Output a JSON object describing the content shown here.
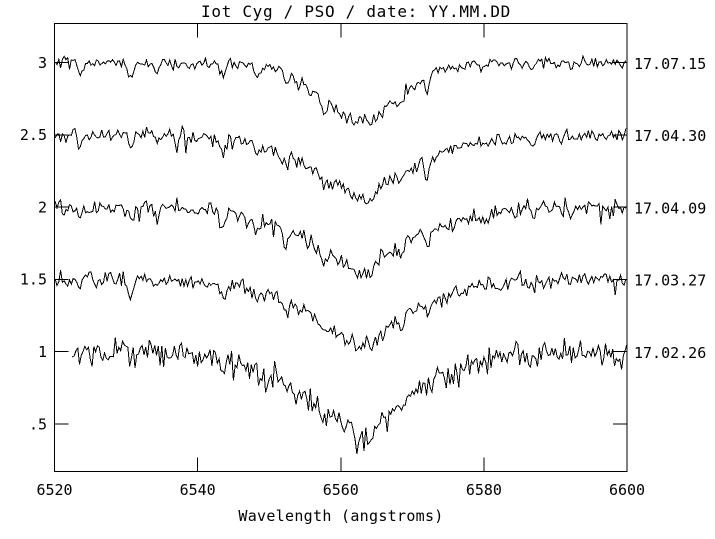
{
  "chart_data": {
    "type": "line",
    "title": "Iot Cyg / PSO / date: YY.MM.DD",
    "xlabel": "Wavelength (angstroms)",
    "ylabel": "",
    "xlim": [
      6520,
      6600
    ],
    "ylim": [
      0.17,
      3.27
    ],
    "grid": false,
    "legend_position": "right-margin-date-labels",
    "background": "#ffffff",
    "line_color": "#000000",
    "axis_color": "#000000",
    "x_ticks": [
      {
        "label": "6520",
        "value": 6520
      },
      {
        "label": "6540",
        "value": 6540
      },
      {
        "label": "6560",
        "value": 6560
      },
      {
        "label": "6580",
        "value": 6580
      },
      {
        "label": "6600",
        "value": 6600
      }
    ],
    "y_ticks": [
      {
        "label": "3",
        "value": 3.0
      },
      {
        "label": "2.5",
        "value": 2.5
      },
      {
        "label": "2",
        "value": 2.0
      },
      {
        "label": "1.5",
        "value": 1.5
      },
      {
        "label": "1",
        "value": 1.0
      },
      {
        "label": ".5",
        "value": 0.5
      }
    ],
    "description": "Five H-alpha absorption-line spectra of Iota Cyg, vertically offset to continuum levels 3, 2.5, 2, 1.5, 1; date of each observation (YY.MM.DD) labeled at right margin; broad absorption dip centered near 6562.6 angstroms with narrow telluric spikes.",
    "sampling_step_A": 0.25,
    "series": [
      {
        "label": "17.07.15",
        "continuum": 3.0,
        "line_center": 6562.6,
        "line_depth": 0.4,
        "line_width_A": 8.0,
        "profile_shape": 2.0,
        "noise_sigma": 0.022,
        "telluric_scale": 1.0,
        "spike_prob": 0.015,
        "spike_max": 0.1,
        "x_start": 6520.1,
        "x_end": 6600,
        "seed": 101
      },
      {
        "label": "17.04.30",
        "continuum": 2.5,
        "line_center": 6562.6,
        "line_depth": 0.44,
        "line_width_A": 9.5,
        "profile_shape": 1.35,
        "noise_sigma": 0.025,
        "telluric_scale": 0.9,
        "spike_prob": 0.015,
        "spike_max": 0.1,
        "x_start": 6520.1,
        "x_end": 6600,
        "seed": 102
      },
      {
        "label": "17.04.09",
        "continuum": 2.0,
        "line_center": 6562.6,
        "line_depth": 0.45,
        "line_width_A": 10.0,
        "profile_shape": 1.35,
        "noise_sigma": 0.027,
        "telluric_scale": 1.1,
        "spike_prob": 0.015,
        "spike_max": 0.1,
        "x_start": 6520.1,
        "x_end": 6600,
        "seed": 103
      },
      {
        "label": "17.03.27",
        "continuum": 1.5,
        "line_center": 6562.6,
        "line_depth": 0.46,
        "line_width_A": 9.5,
        "profile_shape": 1.4,
        "noise_sigma": 0.027,
        "telluric_scale": 0.8,
        "spike_prob": 0.015,
        "spike_max": 0.1,
        "x_start": 6520.1,
        "x_end": 6600,
        "seed": 104
      },
      {
        "label": "17.02.26",
        "continuum": 1.0,
        "line_center": 6562.6,
        "line_depth": 0.56,
        "line_width_A": 10.5,
        "profile_shape": 1.5,
        "noise_sigma": 0.05,
        "telluric_scale": 0.6,
        "spike_prob": 0.03,
        "spike_max": 0.15,
        "x_start": 6522.5,
        "x_end": 6600,
        "seed": 105
      }
    ],
    "telluric_lines": [
      {
        "wavelength": 6523.5,
        "depth": 0.1
      },
      {
        "wavelength": 6530.7,
        "depth": 0.13
      },
      {
        "wavelength": 6534.4,
        "depth": 0.07
      },
      {
        "wavelength": 6543.5,
        "depth": 0.12
      },
      {
        "wavelength": 6548.3,
        "depth": 0.09
      },
      {
        "wavelength": 6552.4,
        "depth": 0.1
      },
      {
        "wavelength": 6557.6,
        "depth": 0.08
      },
      {
        "wavelength": 6564.1,
        "depth": 0.06
      },
      {
        "wavelength": 6568.3,
        "depth": 0.07
      },
      {
        "wavelength": 6572.1,
        "depth": 0.1
      },
      {
        "wavelength": 6580.1,
        "depth": 0.05
      },
      {
        "wavelength": 6586.8,
        "depth": 0.06
      },
      {
        "wavelength": 6592.2,
        "depth": 0.05
      }
    ]
  }
}
